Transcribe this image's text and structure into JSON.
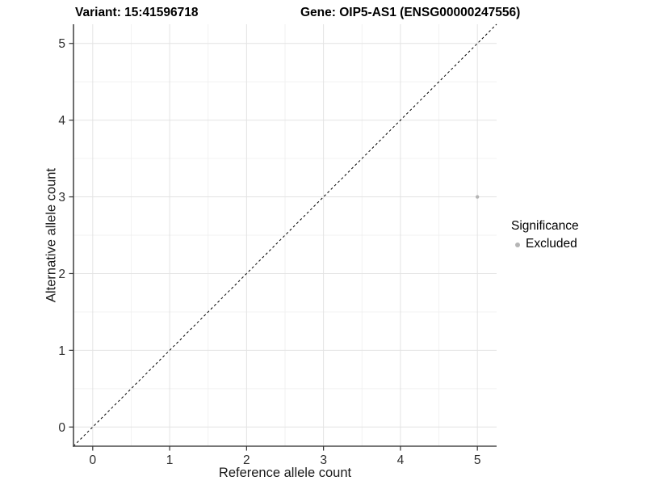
{
  "chart_data": {
    "type": "scatter",
    "title_left": "Variant: 15:41596718",
    "title_right": "Gene: OIP5-AS1 (ENSG00000247556)",
    "xlabel": "Reference allele count",
    "ylabel": "Alternative allele count",
    "xlim": [
      -0.25,
      5.25
    ],
    "ylim": [
      -0.25,
      5.25
    ],
    "x_ticks": [
      0,
      1,
      2,
      3,
      4,
      5
    ],
    "y_ticks": [
      0,
      1,
      2,
      3,
      4,
      5
    ],
    "minor_ticks": [
      0.5,
      1.5,
      2.5,
      3.5,
      4.5
    ],
    "grid": "major+minor",
    "identity_line": {
      "style": "dashed",
      "from": [
        -0.25,
        -0.25
      ],
      "to": [
        5.25,
        5.25
      ],
      "color": "#000000"
    },
    "points": [
      {
        "x": 5,
        "y": 3,
        "significance": "Excluded",
        "color": "#b5b5b5",
        "radius": 2.2
      }
    ],
    "legend": {
      "title": "Significance",
      "position": "right",
      "items": [
        {
          "label": "Excluded",
          "color": "#b5b5b5",
          "marker": "circle"
        }
      ]
    },
    "colors": {
      "background": "#ffffff",
      "grid_major": "#e3e3e3",
      "grid_minor": "#f0f0f0",
      "axis_line": "#4a4a4a",
      "tick_mark": "#333333",
      "tick_label": "#2e2e2e",
      "title": "#000000"
    }
  }
}
